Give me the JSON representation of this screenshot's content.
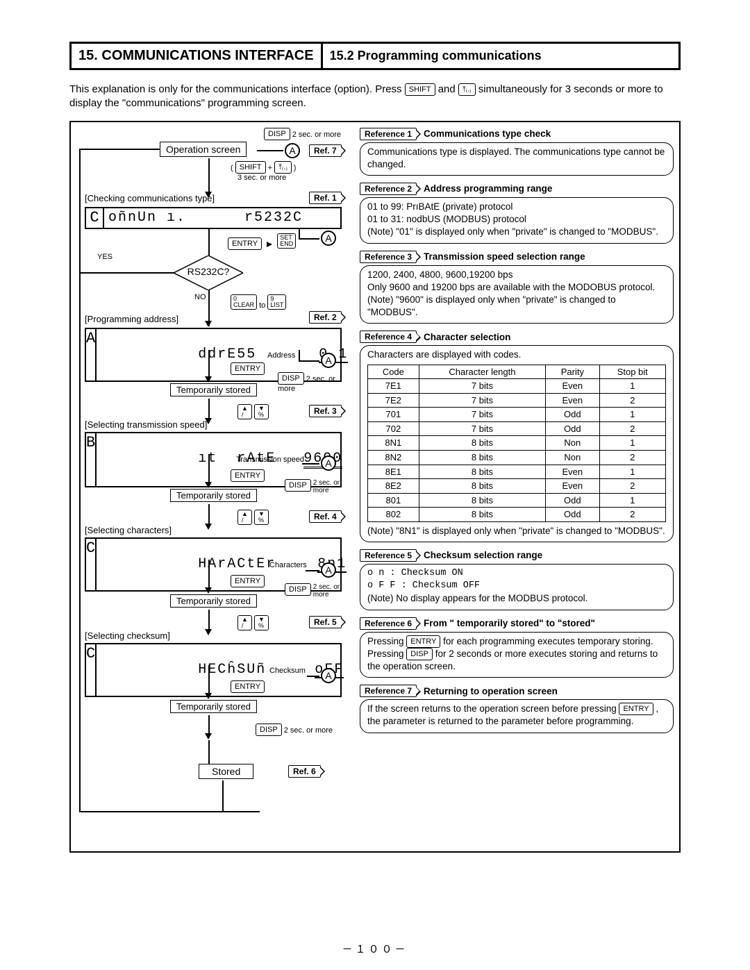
{
  "header": {
    "chapter_num": "15.",
    "chapter_title": "COMMUNICATIONS INTERFACE",
    "section_num": "15.2",
    "section_title": "Programming communications"
  },
  "intro": {
    "line1a": "This explanation is only for the communications interface (option). Press ",
    "key_shift": "SHIFT",
    "line1b": " and ",
    "key_pct": "⤒₍.₎",
    "line1c": " simultaneously for 3 seconds or more to display the \"communications\" programming screen."
  },
  "flow": {
    "disp": "DISP",
    "two_sec": "2 sec. or more",
    "operation_screen": "Operation screen",
    "ref7": "Ref. 7",
    "shift": "SHIFT",
    "plus": "+",
    "pct_key": "⤒₍.₎",
    "three_sec": "3 sec. or more",
    "checking": "[Checking communications type]",
    "ref1": "Ref. 1",
    "lcd1_tag": "C",
    "lcd1_text": "oñnUn ı.      r5232C",
    "entry": "ENTRY",
    "arrow": "→",
    "setend": "SET\nEND",
    "yes": "YES",
    "no": "NO",
    "rs232c_q": "RS232C?",
    "clear": "0\nCLEAR",
    "to": "to",
    "list": "9\nLIST",
    "prog_addr": "[Programming address]",
    "ref2": "Ref. 2",
    "lcd2_tag": "A",
    "lcd2_text": "ddrE55",
    "lcd2_val": "0 1",
    "address": "Address",
    "temp_stored": "Temporarily stored",
    "sel_speed": "[Selecting transmission speed]",
    "ref3": "Ref. 3",
    "lcd3_tag": "B",
    "lcd3_text": "ıt  rAtE",
    "lcd3_val": "9600",
    "trans_speed": "Transmission speed",
    "sel_chars": "[Selecting characters]",
    "ref4": "Ref. 4",
    "lcd4_tag": "C",
    "lcd4_text": "HArACtEr",
    "lcd4_val": "8n1",
    "characters": "Characters",
    "sel_checksum": "[Selecting checksum]",
    "ref5": "Ref. 5",
    "lcd5_tag": "C",
    "lcd5_text": "HECĥSUñ",
    "lcd5_val": "oFF",
    "checksum": "Checksum",
    "stored": "Stored",
    "ref6": "Ref. 6",
    "up_key": "▲\n/",
    "down_key": "▼\n%",
    "two_sec_more": "2 sec. or\nmore"
  },
  "refs": {
    "r1": {
      "label": "Reference 1",
      "title": "Communications type check",
      "body": "Communications type is displayed. The communications type cannot be changed."
    },
    "r2": {
      "label": "Reference 2",
      "title": "Address programming range",
      "l1": "01 to 99:  PrıBAtE (private)  protocol",
      "l2": "01 to 31:  nodbUS (MODBUS) protocol",
      "note": "(Note) \"01\" is displayed only when \"private\" is changed to \"MODBUS\"."
    },
    "r3": {
      "label": "Reference 3",
      "title": "Transmission speed selection range",
      "l1": "1200, 2400, 4800, 9600,19200 bps",
      "l2": "Only 9600 and 19200 bps are available with the MODOBUS protocol.",
      "note": "(Note) \"9600\" is displayed only when \"private\" is changed to \"MODBUS\"."
    },
    "r4": {
      "label": "Reference 4",
      "title": "Character selection",
      "intro": "Characters are displayed with codes.",
      "cols": [
        "Code",
        "Character length",
        "Parity",
        "Stop bit"
      ],
      "rows": [
        [
          "7E1",
          "7 bits",
          "Even",
          "1"
        ],
        [
          "7E2",
          "7 bits",
          "Even",
          "2"
        ],
        [
          "701",
          "7 bits",
          "Odd",
          "1"
        ],
        [
          "702",
          "7 bits",
          "Odd",
          "2"
        ],
        [
          "8N1",
          "8 bits",
          "Non",
          "1"
        ],
        [
          "8N2",
          "8 bits",
          "Non",
          "2"
        ],
        [
          "8E1",
          "8 bits",
          "Even",
          "1"
        ],
        [
          "8E2",
          "8 bits",
          "Even",
          "2"
        ],
        [
          "801",
          "8 bits",
          "Odd",
          "1"
        ],
        [
          "802",
          "8 bits",
          "Odd",
          "2"
        ]
      ],
      "note": "(Note) \"8N1\" is displayed only when \"private\" is changed to \"MODBUS\"."
    },
    "r5": {
      "label": "Reference 5",
      "title": "Checksum selection range",
      "on": "o    n : Checksum ON",
      "off": "o F F : Checksum OFF",
      "note": "(Note) No display appears for the MODBUS protocol."
    },
    "r6": {
      "label": "Reference 6",
      "title": "From \" temporarily stored\" to \"stored\"",
      "b1": "Pressing ",
      "entry": "ENTRY",
      "b2": " for each programming executes temporary storing. Pressing ",
      "disp": "DISP",
      "b3": " for 2 seconds or more executes storing and returns to the operation screen."
    },
    "r7": {
      "label": "Reference 7",
      "title": "Returning to operation screen",
      "b1": "If the screen returns to the operation screen before pressing ",
      "entry": "ENTRY",
      "b2": " , the parameter is returned to the parameter before programming."
    }
  },
  "pagenum": "－１００－"
}
